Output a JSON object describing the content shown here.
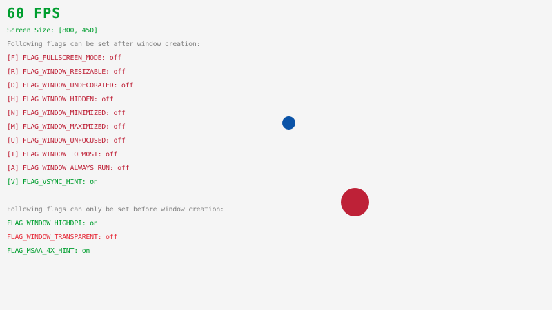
{
  "background_color": "#f5f5f5",
  "hud": {
    "fps": {
      "text": "60 FPS",
      "color": "#009e2f"
    },
    "screen_size": {
      "text": "Screen Size: [800, 450]",
      "color": "#009e2f"
    }
  },
  "colors": {
    "lime": "#009e2f",
    "gray": "#828282",
    "maroon": "#be2137",
    "red": "#e62937",
    "dark_blue": "#0a53a7",
    "raywhite": "#f5f5f5"
  },
  "sections": [
    {
      "heading": {
        "text": "Following flags can be set after window creation:",
        "color": "#828282"
      },
      "flags": [
        {
          "label": "[F] FLAG_FULLSCREEN_MODE: off",
          "state": "off",
          "color": "#be2137"
        },
        {
          "label": "[R] FLAG_WINDOW_RESIZABLE: off",
          "state": "off",
          "color": "#be2137"
        },
        {
          "label": "[D] FLAG_WINDOW_UNDECORATED: off",
          "state": "off",
          "color": "#be2137"
        },
        {
          "label": "[H] FLAG_WINDOW_HIDDEN: off",
          "state": "off",
          "color": "#be2137"
        },
        {
          "label": "[N] FLAG_WINDOW_MINIMIZED: off",
          "state": "off",
          "color": "#be2137"
        },
        {
          "label": "[M] FLAG_WINDOW_MAXIMIZED: off",
          "state": "off",
          "color": "#be2137"
        },
        {
          "label": "[U] FLAG_WINDOW_UNFOCUSED: off",
          "state": "off",
          "color": "#be2137"
        },
        {
          "label": "[T] FLAG_WINDOW_TOPMOST: off",
          "state": "off",
          "color": "#be2137"
        },
        {
          "label": "[A] FLAG_WINDOW_ALWAYS_RUN: off",
          "state": "off",
          "color": "#be2137"
        },
        {
          "label": "[V] FLAG_VSYNC_HINT: on",
          "state": "on",
          "color": "#009e2f"
        }
      ]
    },
    {
      "heading": {
        "text": "Following flags can only be set before window creation:",
        "color": "#828282"
      },
      "flags": [
        {
          "label": "FLAG_WINDOW_HIGHDPI: on",
          "state": "on",
          "color": "#009e2f"
        },
        {
          "label": "FLAG_WINDOW_TRANSPARENT: off",
          "state": "off",
          "color": "#e62937"
        },
        {
          "label": "FLAG_MSAA_4X_HINT: on",
          "state": "on",
          "color": "#009e2f"
        }
      ]
    }
  ],
  "balls": [
    {
      "name": "small blue ball",
      "color": "#0a53a7"
    },
    {
      "name": "large red ball",
      "color": "#be2137"
    }
  ]
}
